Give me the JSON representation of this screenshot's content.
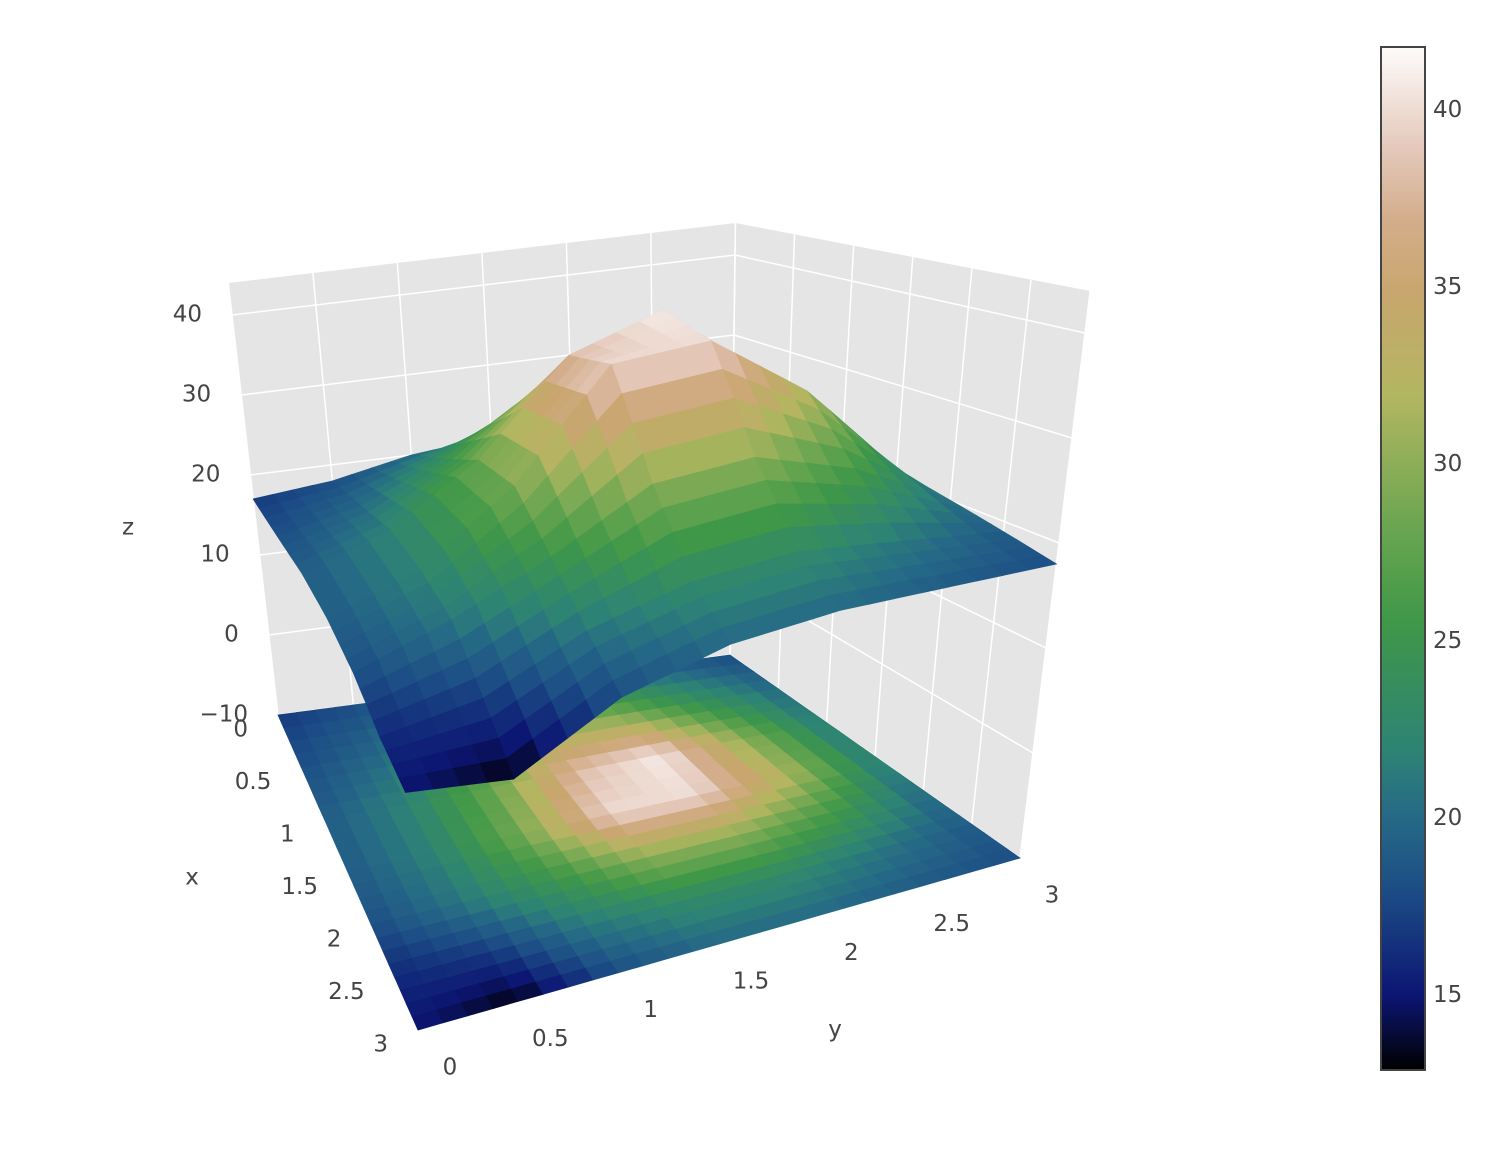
{
  "chart_data": {
    "type": "surface",
    "x": [
      0,
      0.5,
      1,
      1.5,
      2,
      2.5,
      3
    ],
    "y": [
      0,
      0.5,
      1,
      1.5,
      2,
      2.5,
      3
    ],
    "z": [
      [
        17,
        18,
        20,
        21,
        20,
        19,
        18
      ],
      [
        18,
        20,
        24,
        30,
        29,
        24,
        20
      ],
      [
        19,
        22,
        28,
        38,
        41,
        30,
        21
      ],
      [
        19,
        22,
        29,
        40,
        40,
        32,
        21
      ],
      [
        18,
        21,
        25,
        30,
        30,
        26,
        20
      ],
      [
        16,
        17,
        21,
        23,
        23,
        21,
        19
      ],
      [
        15,
        13,
        18,
        20,
        20,
        19,
        18
      ]
    ],
    "xaxis_title": "x",
    "yaxis_title": "y",
    "zaxis_title": "z",
    "xlim": [
      0,
      3
    ],
    "ylim": [
      0,
      3
    ],
    "zlim": [
      -10,
      44
    ],
    "xticks": [
      0,
      0.5,
      1,
      1.5,
      2,
      2.5,
      3
    ],
    "yticks": [
      0,
      0.5,
      1,
      1.5,
      2,
      2.5,
      3
    ],
    "zticks": [
      {
        "value": -10,
        "label": "−10"
      },
      0,
      10,
      20,
      30,
      40
    ],
    "colorscale": [
      [
        0,
        "#000000"
      ],
      [
        0.073,
        "#0c1673"
      ],
      [
        0.18,
        "#1d4f86"
      ],
      [
        0.25,
        "#266a86"
      ],
      [
        0.31,
        "#2d8375"
      ],
      [
        0.44,
        "#3f9848"
      ],
      [
        0.53,
        "#6aa550"
      ],
      [
        0.66,
        "#b3b660"
      ],
      [
        0.76,
        "#c8a66e"
      ],
      [
        0.83,
        "#d3ad8a"
      ],
      [
        0.9,
        "#e4c8ba"
      ],
      [
        1,
        "#fdfbfb"
      ]
    ],
    "colorbar": {
      "lim": [
        12.9,
        41.8
      ],
      "ticks": [
        15,
        20,
        25,
        30,
        35,
        40
      ]
    },
    "project_floor": true,
    "grid": true
  }
}
